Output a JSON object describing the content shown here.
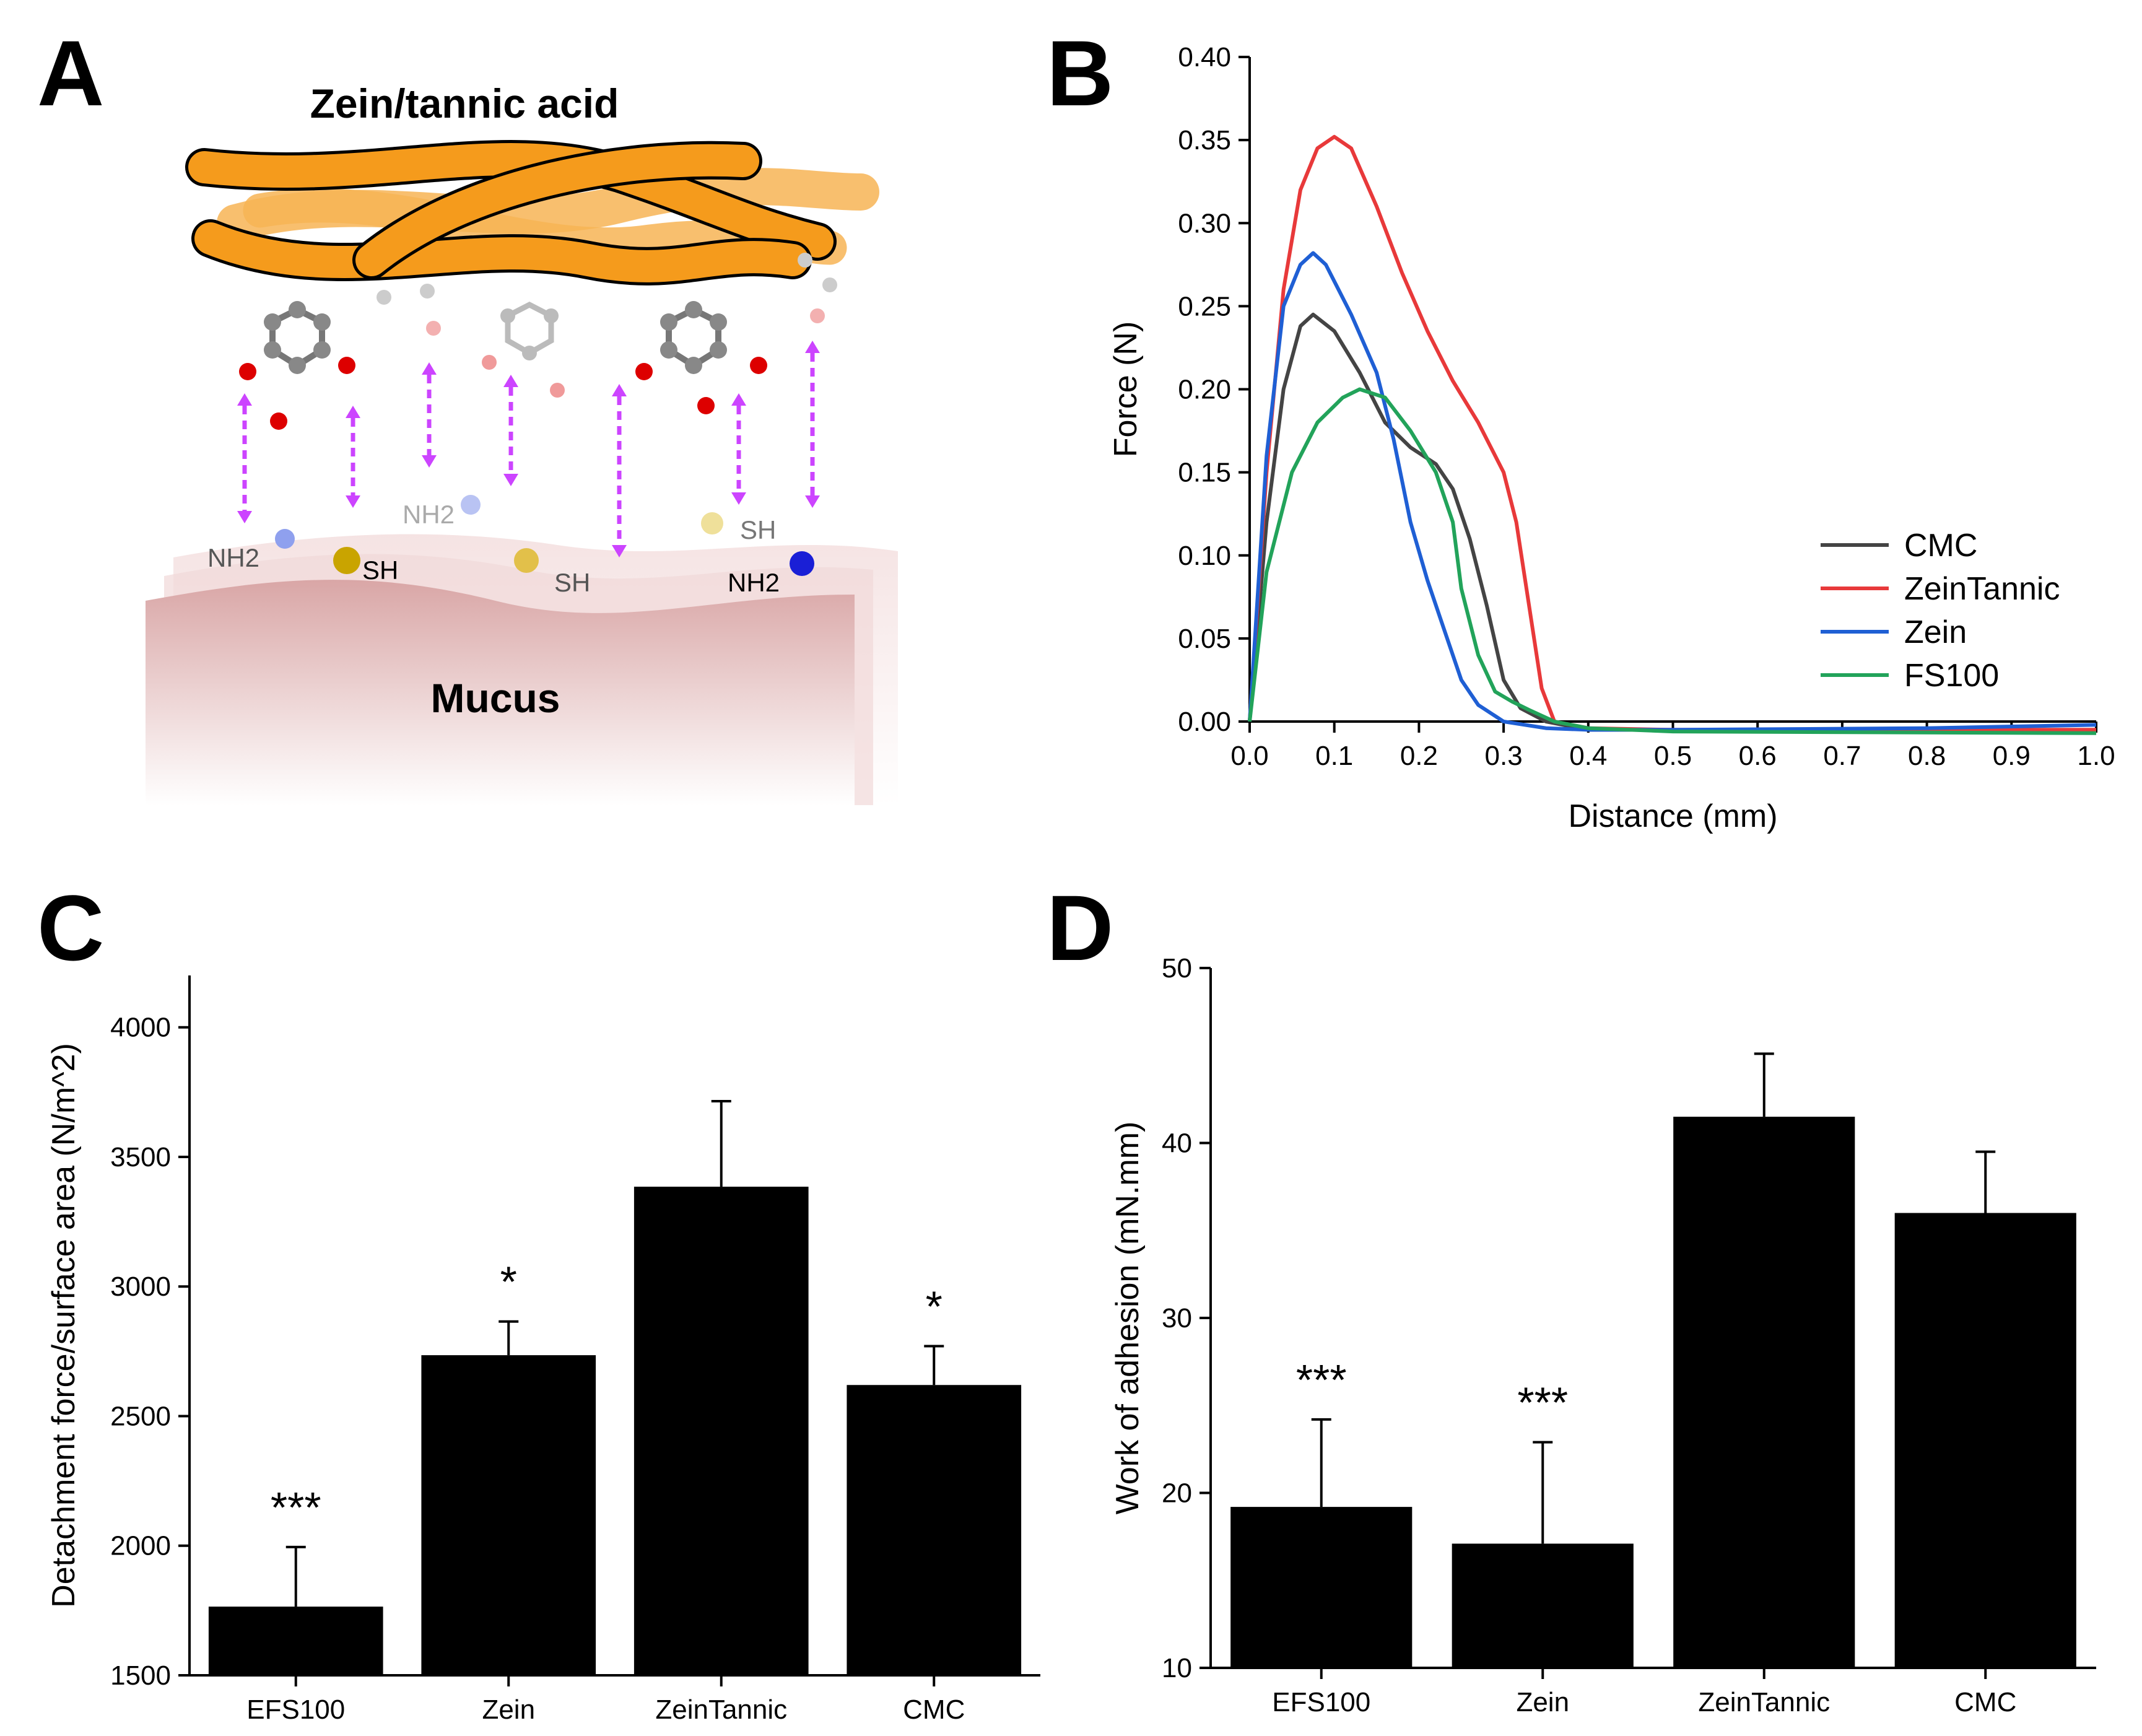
{
  "panels": {
    "A": {
      "letter": "A",
      "title": "Zein/tannic acid",
      "substrate_label": "Mucus",
      "group_labels": [
        "NH2",
        "SH",
        "NH2",
        "SH",
        "SH",
        "NH2"
      ]
    },
    "B": {
      "letter": "B"
    },
    "C": {
      "letter": "C"
    },
    "D": {
      "letter": "D"
    }
  },
  "colors": {
    "CMC": "#444444",
    "ZeinTannic": "#e8393a",
    "Zein": "#1f5fd4",
    "FS100": "#22a35a",
    "bar": "#000000",
    "arrow": "#cc44ff",
    "fiber": "#f59b1c"
  },
  "chart_data": [
    {
      "panel": "B",
      "type": "line",
      "xlabel": "Distance (mm)",
      "ylabel": "Force (N)",
      "xlim": [
        0,
        1.0
      ],
      "ylim": [
        0,
        0.4
      ],
      "xticks": [
        "0.0",
        "0.1",
        "0.2",
        "0.3",
        "0.4",
        "0.5",
        "0.6",
        "0.7",
        "0.8",
        "0.9",
        "1.0"
      ],
      "yticks": [
        "0.00",
        "0.05",
        "0.10",
        "0.15",
        "0.20",
        "0.25",
        "0.30",
        "0.35",
        "0.40"
      ],
      "legend_position": "middle-right",
      "series": [
        {
          "name": "CMC",
          "color": "#444444",
          "x": [
            0,
            0.02,
            0.04,
            0.06,
            0.075,
            0.1,
            0.13,
            0.16,
            0.19,
            0.22,
            0.24,
            0.26,
            0.28,
            0.3,
            0.32,
            0.35,
            0.4,
            0.5,
            1.0
          ],
          "y": [
            0,
            0.12,
            0.2,
            0.238,
            0.245,
            0.235,
            0.21,
            0.18,
            0.165,
            0.155,
            0.14,
            0.11,
            0.07,
            0.025,
            0.008,
            0.0,
            -0.005,
            -0.005,
            -0.005
          ]
        },
        {
          "name": "ZeinTannic",
          "color": "#e8393a",
          "x": [
            0,
            0.02,
            0.04,
            0.06,
            0.08,
            0.1,
            0.12,
            0.15,
            0.18,
            0.21,
            0.24,
            0.27,
            0.3,
            0.315,
            0.33,
            0.345,
            0.36,
            0.4,
            0.5,
            1.0
          ],
          "y": [
            0,
            0.15,
            0.26,
            0.32,
            0.345,
            0.352,
            0.345,
            0.31,
            0.27,
            0.235,
            0.205,
            0.18,
            0.15,
            0.12,
            0.07,
            0.02,
            0.0,
            -0.004,
            -0.005,
            -0.005
          ]
        },
        {
          "name": "Zein",
          "color": "#1f5fd4",
          "x": [
            0,
            0.02,
            0.04,
            0.06,
            0.075,
            0.09,
            0.12,
            0.15,
            0.17,
            0.19,
            0.21,
            0.23,
            0.25,
            0.27,
            0.3,
            0.35,
            0.4,
            0.5,
            0.8,
            1.0
          ],
          "y": [
            0,
            0.16,
            0.25,
            0.275,
            0.282,
            0.275,
            0.245,
            0.21,
            0.17,
            0.12,
            0.085,
            0.055,
            0.025,
            0.01,
            0.0,
            -0.004,
            -0.005,
            -0.005,
            -0.004,
            -0.002
          ]
        },
        {
          "name": "FS100",
          "color": "#22a35a",
          "x": [
            0,
            0.02,
            0.05,
            0.08,
            0.11,
            0.13,
            0.16,
            0.19,
            0.22,
            0.24,
            0.25,
            0.27,
            0.29,
            0.31,
            0.33,
            0.36,
            0.4,
            0.5,
            1.0
          ],
          "y": [
            0,
            0.09,
            0.15,
            0.18,
            0.195,
            0.2,
            0.195,
            0.175,
            0.15,
            0.12,
            0.08,
            0.04,
            0.018,
            0.012,
            0.007,
            0.0,
            -0.004,
            -0.006,
            -0.007
          ]
        }
      ]
    },
    {
      "panel": "C",
      "type": "bar",
      "categories": [
        "EFS100",
        "Zein",
        "ZeinTannic",
        "CMC"
      ],
      "values": [
        1765,
        2735,
        3385,
        2620
      ],
      "errors": [
        230,
        130,
        330,
        150
      ],
      "significance": [
        "***",
        "*",
        "",
        "*"
      ],
      "ylabel": "Detachment force/surface area (N/m^2)",
      "xlabel": "",
      "ylim": [
        1500,
        4200
      ],
      "yticks": [
        "1500",
        "2000",
        "2500",
        "3000",
        "3500",
        "4000"
      ]
    },
    {
      "panel": "D",
      "type": "bar",
      "categories": [
        "EFS100",
        "Zein",
        "ZeinTannic",
        "CMC"
      ],
      "values": [
        19.2,
        17.1,
        41.5,
        36.0
      ],
      "errors": [
        5.0,
        5.8,
        3.6,
        3.5
      ],
      "significance": [
        "***",
        "***",
        "",
        ""
      ],
      "ylabel": "Work of adhesion (mN.mm)",
      "xlabel": "",
      "ylim": [
        10,
        50
      ],
      "yticks": [
        "10",
        "20",
        "30",
        "40",
        "50"
      ]
    }
  ]
}
